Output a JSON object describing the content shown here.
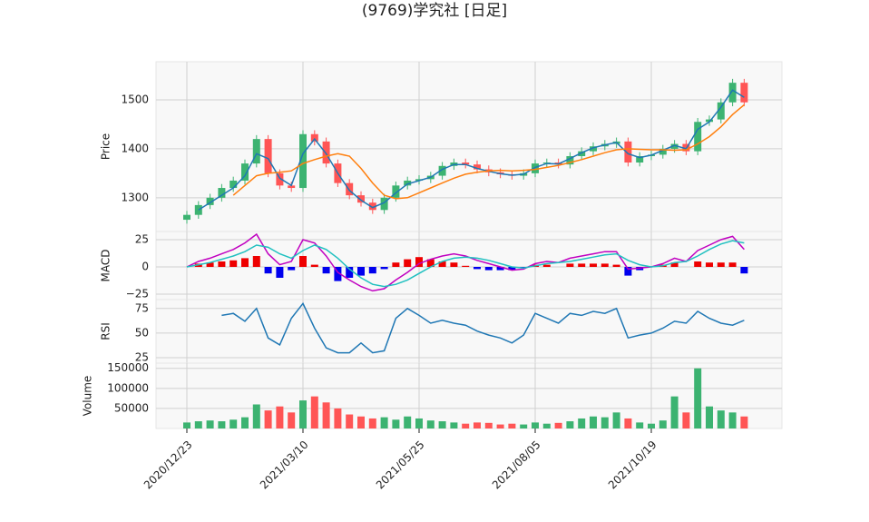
{
  "chart_data": [
    {
      "type": "candlestick",
      "title": "(9769)学究社  [日足]",
      "ylabel": "Price",
      "categories": [
        "2020/12/23",
        null,
        null,
        null,
        null,
        null,
        null,
        null,
        null,
        null,
        "2021/03/10",
        null,
        null,
        null,
        null,
        null,
        null,
        null,
        null,
        null,
        "2021/05/25",
        null,
        null,
        null,
        null,
        null,
        null,
        null,
        null,
        null,
        "2021/08/05",
        null,
        null,
        null,
        null,
        null,
        null,
        null,
        null,
        null,
        "2021/10/19",
        null,
        null,
        null,
        null,
        null,
        null,
        null,
        null
      ],
      "open": [
        1255,
        1265,
        1285,
        1300,
        1320,
        1335,
        1370,
        1420,
        1350,
        1325,
        1320,
        1430,
        1415,
        1370,
        1330,
        1305,
        1290,
        1275,
        1300,
        1325,
        1335,
        1338,
        1345,
        1365,
        1372,
        1368,
        1358,
        1352,
        1348,
        1345,
        1350,
        1370,
        1372,
        1368,
        1385,
        1395,
        1405,
        1410,
        1415,
        1372,
        1385,
        1388,
        1400,
        1410,
        1395,
        1455,
        1460,
        1495,
        1535
      ],
      "high": [
        1273,
        1293,
        1308,
        1328,
        1343,
        1378,
        1428,
        1428,
        1358,
        1333,
        1438,
        1438,
        1423,
        1378,
        1338,
        1313,
        1298,
        1308,
        1333,
        1343,
        1346,
        1353,
        1373,
        1380,
        1380,
        1376,
        1366,
        1360,
        1356,
        1358,
        1378,
        1380,
        1380,
        1393,
        1403,
        1413,
        1418,
        1423,
        1423,
        1393,
        1396,
        1408,
        1418,
        1418,
        1463,
        1468,
        1503,
        1543,
        1543
      ],
      "low": [
        1247,
        1257,
        1277,
        1292,
        1312,
        1327,
        1362,
        1342,
        1317,
        1312,
        1312,
        1407,
        1362,
        1322,
        1297,
        1282,
        1267,
        1267,
        1292,
        1317,
        1327,
        1330,
        1337,
        1357,
        1360,
        1350,
        1344,
        1340,
        1337,
        1337,
        1342,
        1362,
        1360,
        1360,
        1377,
        1387,
        1397,
        1402,
        1364,
        1364,
        1377,
        1380,
        1392,
        1387,
        1387,
        1447,
        1452,
        1487,
        1487
      ],
      "close": [
        1265,
        1285,
        1300,
        1320,
        1335,
        1370,
        1420,
        1350,
        1325,
        1320,
        1430,
        1415,
        1370,
        1330,
        1305,
        1290,
        1275,
        1300,
        1325,
        1335,
        1338,
        1345,
        1365,
        1372,
        1368,
        1358,
        1352,
        1348,
        1345,
        1350,
        1370,
        1372,
        1368,
        1385,
        1395,
        1405,
        1410,
        1415,
        1372,
        1385,
        1388,
        1400,
        1410,
        1395,
        1455,
        1460,
        1495,
        1535,
        1495
      ],
      "up_color": "#3cb371",
      "down_color": "#ff5555",
      "series": [
        {
          "color": "#1f77b4",
          "values": [
            null,
            1275,
            1290,
            1305,
            1320,
            1345,
            1390,
            1380,
            1340,
            1325,
            1390,
            1420,
            1390,
            1350,
            1315,
            1295,
            1280,
            1290,
            1310,
            1328,
            1335,
            1342,
            1358,
            1368,
            1368,
            1360,
            1354,
            1349,
            1346,
            1348,
            1362,
            1370,
            1369,
            1380,
            1392,
            1402,
            1408,
            1413,
            1390,
            1382,
            1387,
            1397,
            1407,
            1400,
            1440,
            1455,
            1485,
            1520,
            1505
          ]
        },
        {
          "color": "#ff7f0e",
          "values": [
            null,
            null,
            null,
            null,
            1305,
            1325,
            1345,
            1350,
            1352,
            1355,
            1370,
            1378,
            1385,
            1390,
            1385,
            1360,
            1330,
            1305,
            1298,
            1300,
            1310,
            1320,
            1330,
            1340,
            1348,
            1352,
            1355,
            1356,
            1355,
            1356,
            1358,
            1362,
            1366,
            1372,
            1378,
            1385,
            1392,
            1398,
            1400,
            1399,
            1398,
            1398,
            1397,
            1398,
            1410,
            1425,
            1445,
            1470,
            1490
          ]
        }
      ],
      "ylim": [
        1231,
        1578
      ],
      "yticks": [
        1300,
        1400,
        1500
      ],
      "grid": true
    },
    {
      "type": "macd",
      "ylabel": "MACD",
      "series": [
        {
          "color": "#c000c0",
          "values": [
            0,
            5,
            8,
            12,
            16,
            22,
            30,
            12,
            2,
            5,
            25,
            22,
            10,
            -5,
            -12,
            -18,
            -22,
            -20,
            -12,
            -5,
            3,
            7,
            10,
            12,
            10,
            6,
            3,
            0,
            -3,
            -2,
            3,
            5,
            4,
            8,
            10,
            12,
            14,
            14,
            -2,
            -1,
            0,
            3,
            8,
            5,
            15,
            20,
            25,
            28,
            16
          ]
        },
        {
          "color": "#20c0c0",
          "values": [
            0,
            2,
            4,
            7,
            10,
            14,
            20,
            18,
            12,
            8,
            15,
            20,
            16,
            8,
            -2,
            -10,
            -16,
            -18,
            -16,
            -12,
            -6,
            0,
            5,
            8,
            9,
            8,
            6,
            3,
            0,
            -1,
            1,
            3,
            4,
            5,
            7,
            9,
            11,
            12,
            6,
            2,
            0,
            1,
            4,
            5,
            10,
            16,
            21,
            24,
            22
          ]
        }
      ],
      "histogram": [
        0,
        3,
        4,
        5,
        6,
        8,
        10,
        -6,
        -10,
        -3,
        10,
        2,
        -6,
        -13,
        -10,
        -8,
        -6,
        -2,
        4,
        7,
        9,
        7,
        5,
        4,
        1,
        -2,
        -3,
        -3,
        -3,
        -1,
        2,
        2,
        0,
        3,
        3,
        3,
        3,
        2,
        -8,
        -3,
        0,
        2,
        4,
        0,
        5,
        4,
        4,
        4,
        -6
      ],
      "pos_color": "#ee0000",
      "neg_color": "#0000ee",
      "ylim": [
        -30,
        32.5
      ],
      "yticks": [
        {
          "value": -25,
          "label": "−25"
        },
        0,
        25
      ],
      "grid": true
    },
    {
      "type": "line",
      "ylabel": "RSI",
      "color": "#1f77b4",
      "values": [
        null,
        null,
        null,
        68,
        70,
        62,
        75,
        45,
        38,
        65,
        80,
        55,
        35,
        30,
        30,
        40,
        30,
        32,
        65,
        75,
        68,
        60,
        63,
        60,
        58,
        52,
        48,
        45,
        40,
        48,
        70,
        65,
        60,
        70,
        68,
        72,
        70,
        75,
        45,
        48,
        50,
        55,
        62,
        60,
        72,
        65,
        60,
        58,
        63
      ],
      "ylim": [
        19.5,
        84
      ],
      "yticks": [
        25,
        50,
        75
      ],
      "grid": true
    },
    {
      "type": "bar",
      "ylabel": "Volume",
      "values": [
        15000,
        18000,
        20000,
        18000,
        22000,
        28000,
        60000,
        45000,
        55000,
        40000,
        70000,
        80000,
        65000,
        50000,
        35000,
        30000,
        25000,
        28000,
        22000,
        30000,
        25000,
        20000,
        18000,
        15000,
        12000,
        15000,
        14000,
        10000,
        12000,
        10000,
        15000,
        12000,
        14000,
        18000,
        25000,
        30000,
        28000,
        40000,
        25000,
        15000,
        12000,
        20000,
        80000,
        40000,
        150000,
        55000,
        45000,
        40000,
        30000
      ],
      "ylim": [
        0,
        163000
      ],
      "yticks": [
        50000,
        100000,
        150000
      ],
      "grid": true
    }
  ]
}
